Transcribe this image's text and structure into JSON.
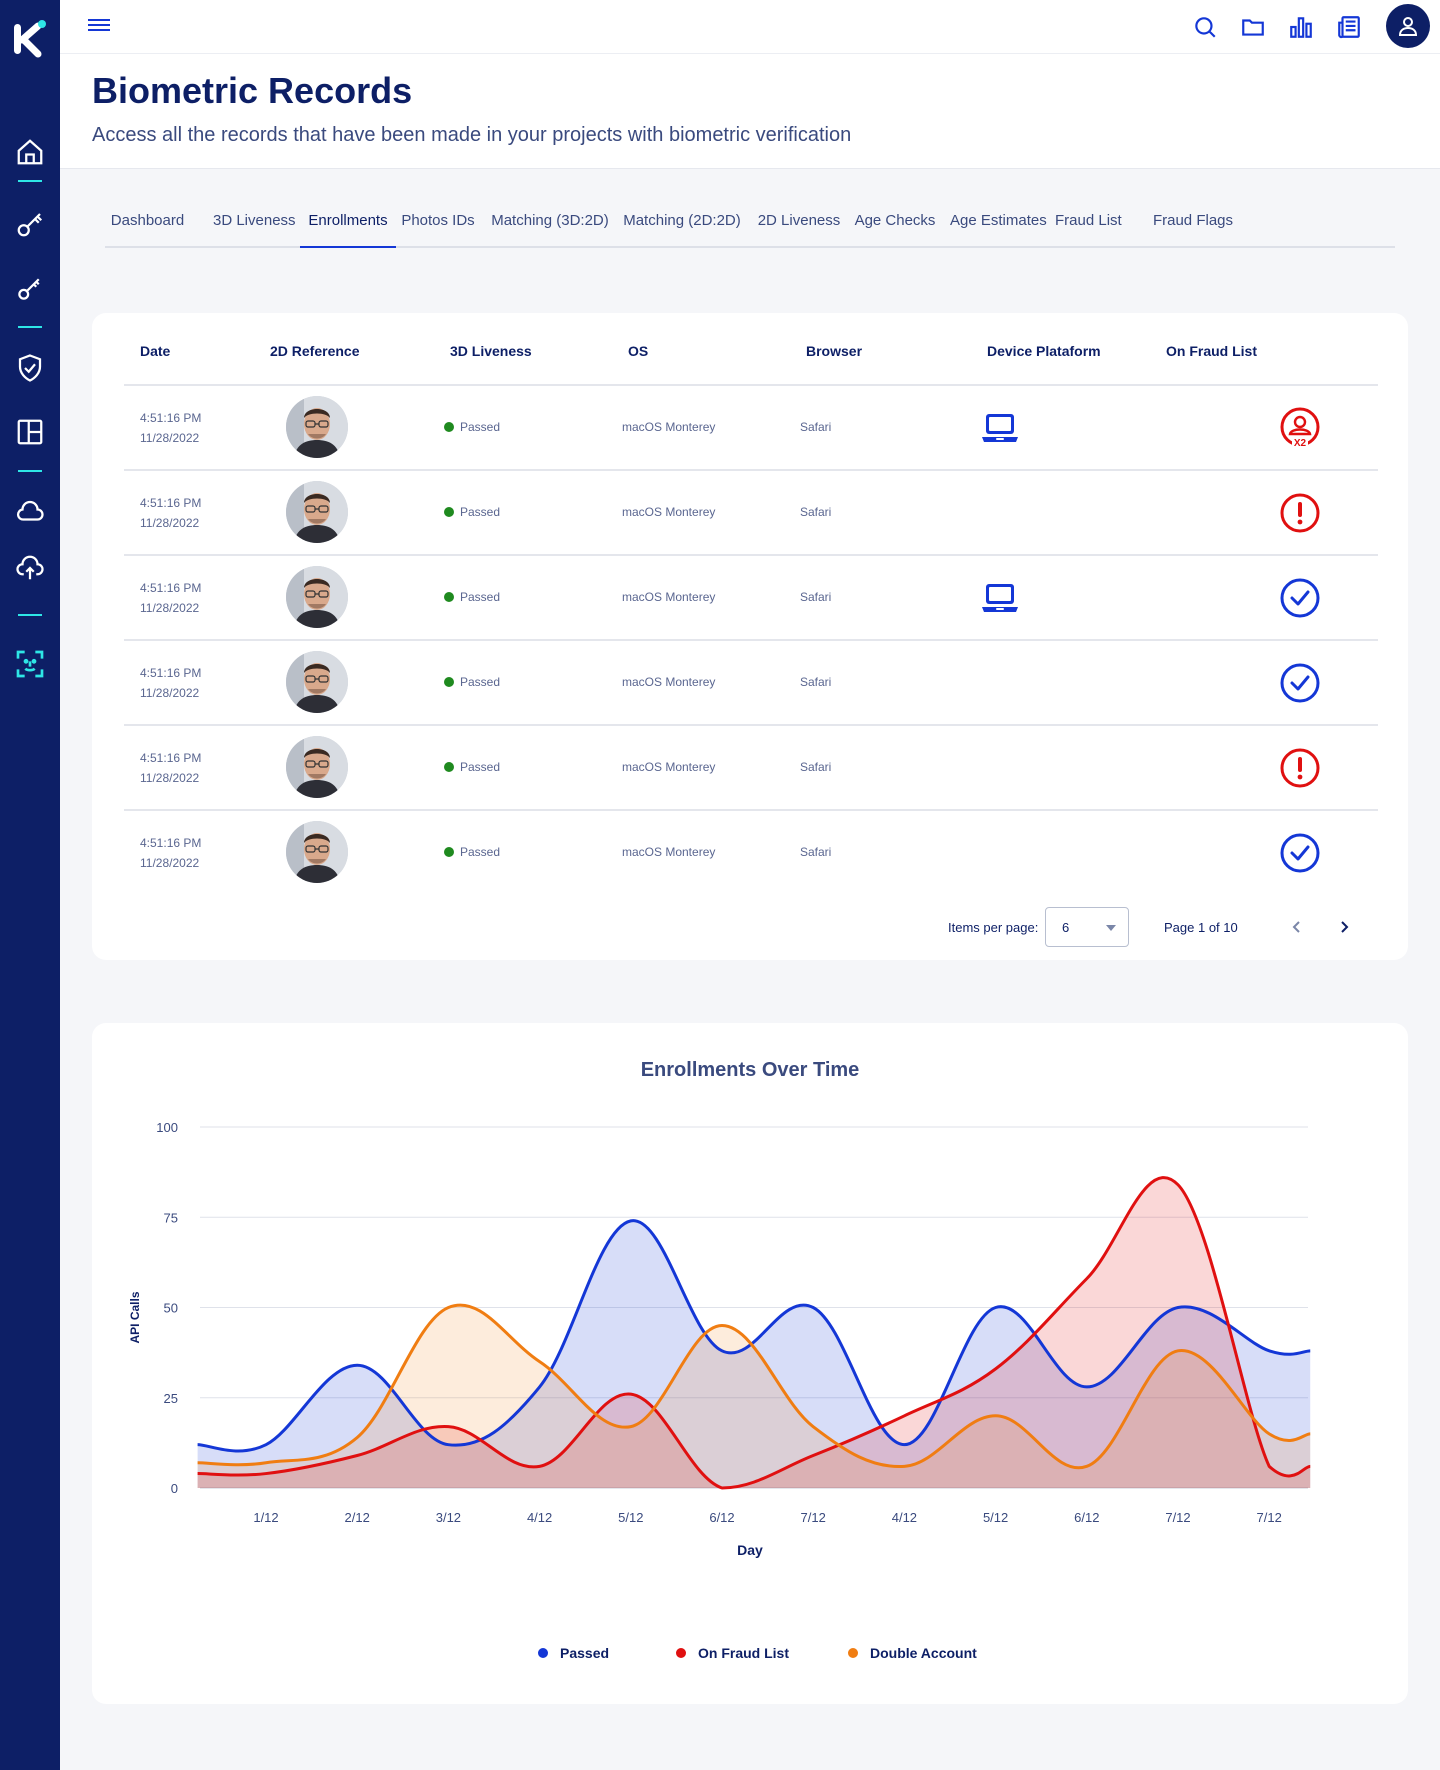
{
  "header": {
    "title": "Biometric Records",
    "subtitle": "Access all the records that have been made in your projects with biometric verification"
  },
  "tabs": [
    {
      "label": "Dashboard",
      "active": false
    },
    {
      "label": "3D Liveness",
      "active": false
    },
    {
      "label": "Enrollments",
      "active": true
    },
    {
      "label": "Photos IDs",
      "active": false
    },
    {
      "label": "Matching (3D:2D)",
      "active": false
    },
    {
      "label": "Matching (2D:2D)",
      "active": false
    },
    {
      "label": "2D Liveness",
      "active": false
    },
    {
      "label": "Age Checks",
      "active": false
    },
    {
      "label": "Age Estimates",
      "active": false
    },
    {
      "label": "Fraud List",
      "active": false
    },
    {
      "label": "Fraud Flags",
      "active": false
    }
  ],
  "table": {
    "columns": [
      "Date",
      "2D Reference",
      "3D Liveness",
      "OS",
      "Browser",
      "Device Plataform",
      "On Fraud List"
    ],
    "rows": [
      {
        "time": "4:51:16 PM",
        "date": "11/28/2022",
        "status": "Passed",
        "os": "macOS Monterey",
        "browser": "Safari",
        "device": "laptop-icon",
        "fraud": "fraud-x2-icon"
      },
      {
        "time": "4:51:16 PM",
        "date": "11/28/2022",
        "status": "Passed",
        "os": "macOS Monterey",
        "browser": "Safari",
        "device": "",
        "fraud": "alert-icon"
      },
      {
        "time": "4:51:16 PM",
        "date": "11/28/2022",
        "status": "Passed",
        "os": "macOS Monterey",
        "browser": "Safari",
        "device": "laptop-icon",
        "fraud": "check-icon"
      },
      {
        "time": "4:51:16 PM",
        "date": "11/28/2022",
        "status": "Passed",
        "os": "macOS Monterey",
        "browser": "Safari",
        "device": "",
        "fraud": "check-icon"
      },
      {
        "time": "4:51:16 PM",
        "date": "11/28/2022",
        "status": "Passed",
        "os": "macOS Monterey",
        "browser": "Safari",
        "device": "",
        "fraud": "alert-icon"
      },
      {
        "time": "4:51:16 PM",
        "date": "11/28/2022",
        "status": "Passed",
        "os": "macOS Monterey",
        "browser": "Safari",
        "device": "",
        "fraud": "check-icon"
      }
    ],
    "fraud_badge": "X2"
  },
  "pagination": {
    "items_label": "Items per page:",
    "items_value": "6",
    "page_label": "Page 1 of 10"
  },
  "colors": {
    "passed": "#1437d6",
    "fraud": "#e01010",
    "double": "#f07d12",
    "status_dot": "#1f8a1f"
  },
  "chart_data": {
    "type": "area",
    "title": "Enrollments Over Time",
    "xlabel": "Day",
    "ylabel": "API Calls",
    "ylim": [
      0,
      100
    ],
    "yticks": [
      0,
      25,
      50,
      75,
      100
    ],
    "categories": [
      "1/12",
      "2/12",
      "3/12",
      "4/12",
      "5/12",
      "6/12",
      "7/12",
      "4/12",
      "5/12",
      "6/12",
      "7/12",
      "7/12"
    ],
    "x_start": 0.25,
    "x_end": 11.55,
    "series": [
      {
        "name": "Passed",
        "color": "#1437d6",
        "points": [
          [
            0.25,
            12
          ],
          [
            1,
            12
          ],
          [
            2,
            34
          ],
          [
            3,
            12
          ],
          [
            4,
            28
          ],
          [
            5,
            74
          ],
          [
            6,
            38
          ],
          [
            7,
            50
          ],
          [
            8,
            12
          ],
          [
            9,
            50
          ],
          [
            10,
            28
          ],
          [
            11,
            50
          ],
          [
            12,
            38
          ],
          [
            12.45,
            38
          ]
        ]
      },
      {
        "name": "On Fraud List",
        "color": "#e01010",
        "points": [
          [
            0.25,
            4
          ],
          [
            1,
            4
          ],
          [
            2,
            9
          ],
          [
            3,
            17
          ],
          [
            4,
            6
          ],
          [
            5,
            26
          ],
          [
            6,
            0
          ],
          [
            7,
            9
          ],
          [
            8,
            20
          ],
          [
            9,
            33
          ],
          [
            10,
            58
          ],
          [
            11,
            84
          ],
          [
            12,
            6
          ],
          [
            12.45,
            6
          ]
        ]
      },
      {
        "name": "Double Account",
        "color": "#f07d12",
        "points": [
          [
            0.25,
            7
          ],
          [
            1,
            7
          ],
          [
            2,
            14
          ],
          [
            3,
            50
          ],
          [
            4,
            35
          ],
          [
            5,
            17
          ],
          [
            6,
            45
          ],
          [
            7,
            17
          ],
          [
            8,
            6
          ],
          [
            9,
            20
          ],
          [
            10,
            6
          ],
          [
            11,
            38
          ],
          [
            12,
            15
          ],
          [
            12.45,
            15
          ]
        ]
      }
    ],
    "legend_position": "bottom"
  }
}
